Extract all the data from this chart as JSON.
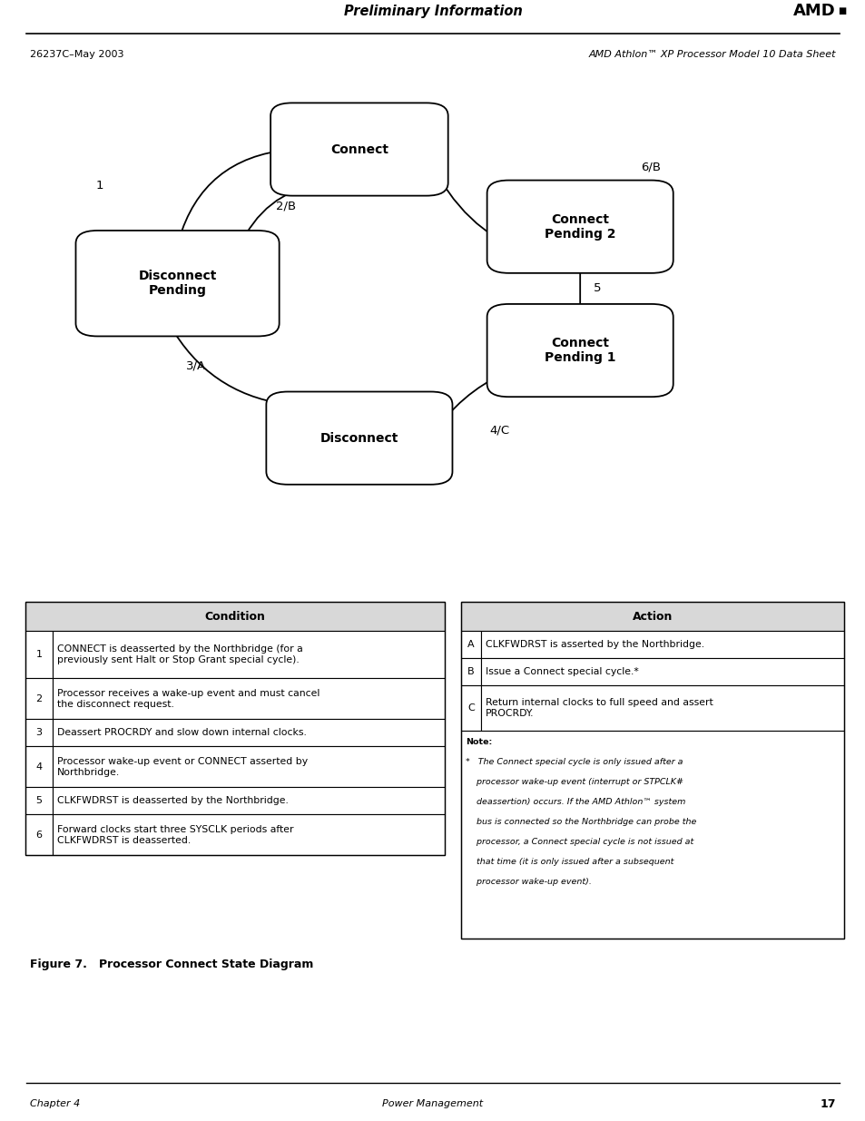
{
  "title_header": "Preliminary Information",
  "amd_logo": "AMD■",
  "doc_number": "26237C–May 2003",
  "doc_title": "AMD Athlon™ XP Processor Model 10 Data Sheet",
  "figure_caption": "Figure 7.   Processor Connect State Diagram",
  "chapter_left": "Chapter 4",
  "chapter_center": "Power Management",
  "chapter_right": "17",
  "condition_rows": [
    [
      "1",
      "CONNECT is deasserted by the Northbridge (for a\npreviously sent Halt or Stop Grant special cycle)."
    ],
    [
      "2",
      "Processor receives a wake-up event and must cancel\nthe disconnect request."
    ],
    [
      "3",
      "Deassert PROCRDY and slow down internal clocks."
    ],
    [
      "4",
      "Processor wake-up event or CONNECT asserted by\nNorthbridge."
    ],
    [
      "5",
      "CLKFWDRST is deasserted by the Northbridge."
    ],
    [
      "6",
      "Forward clocks start three SYSCLK periods after\nCLKFWDRST is deasserted."
    ]
  ],
  "action_rows": [
    [
      "A",
      "CLKFWDRST is asserted by the Northbridge."
    ],
    [
      "B",
      "Issue a Connect special cycle.*"
    ],
    [
      "C",
      "Return internal clocks to full speed and assert\nPROCRDY."
    ]
  ]
}
